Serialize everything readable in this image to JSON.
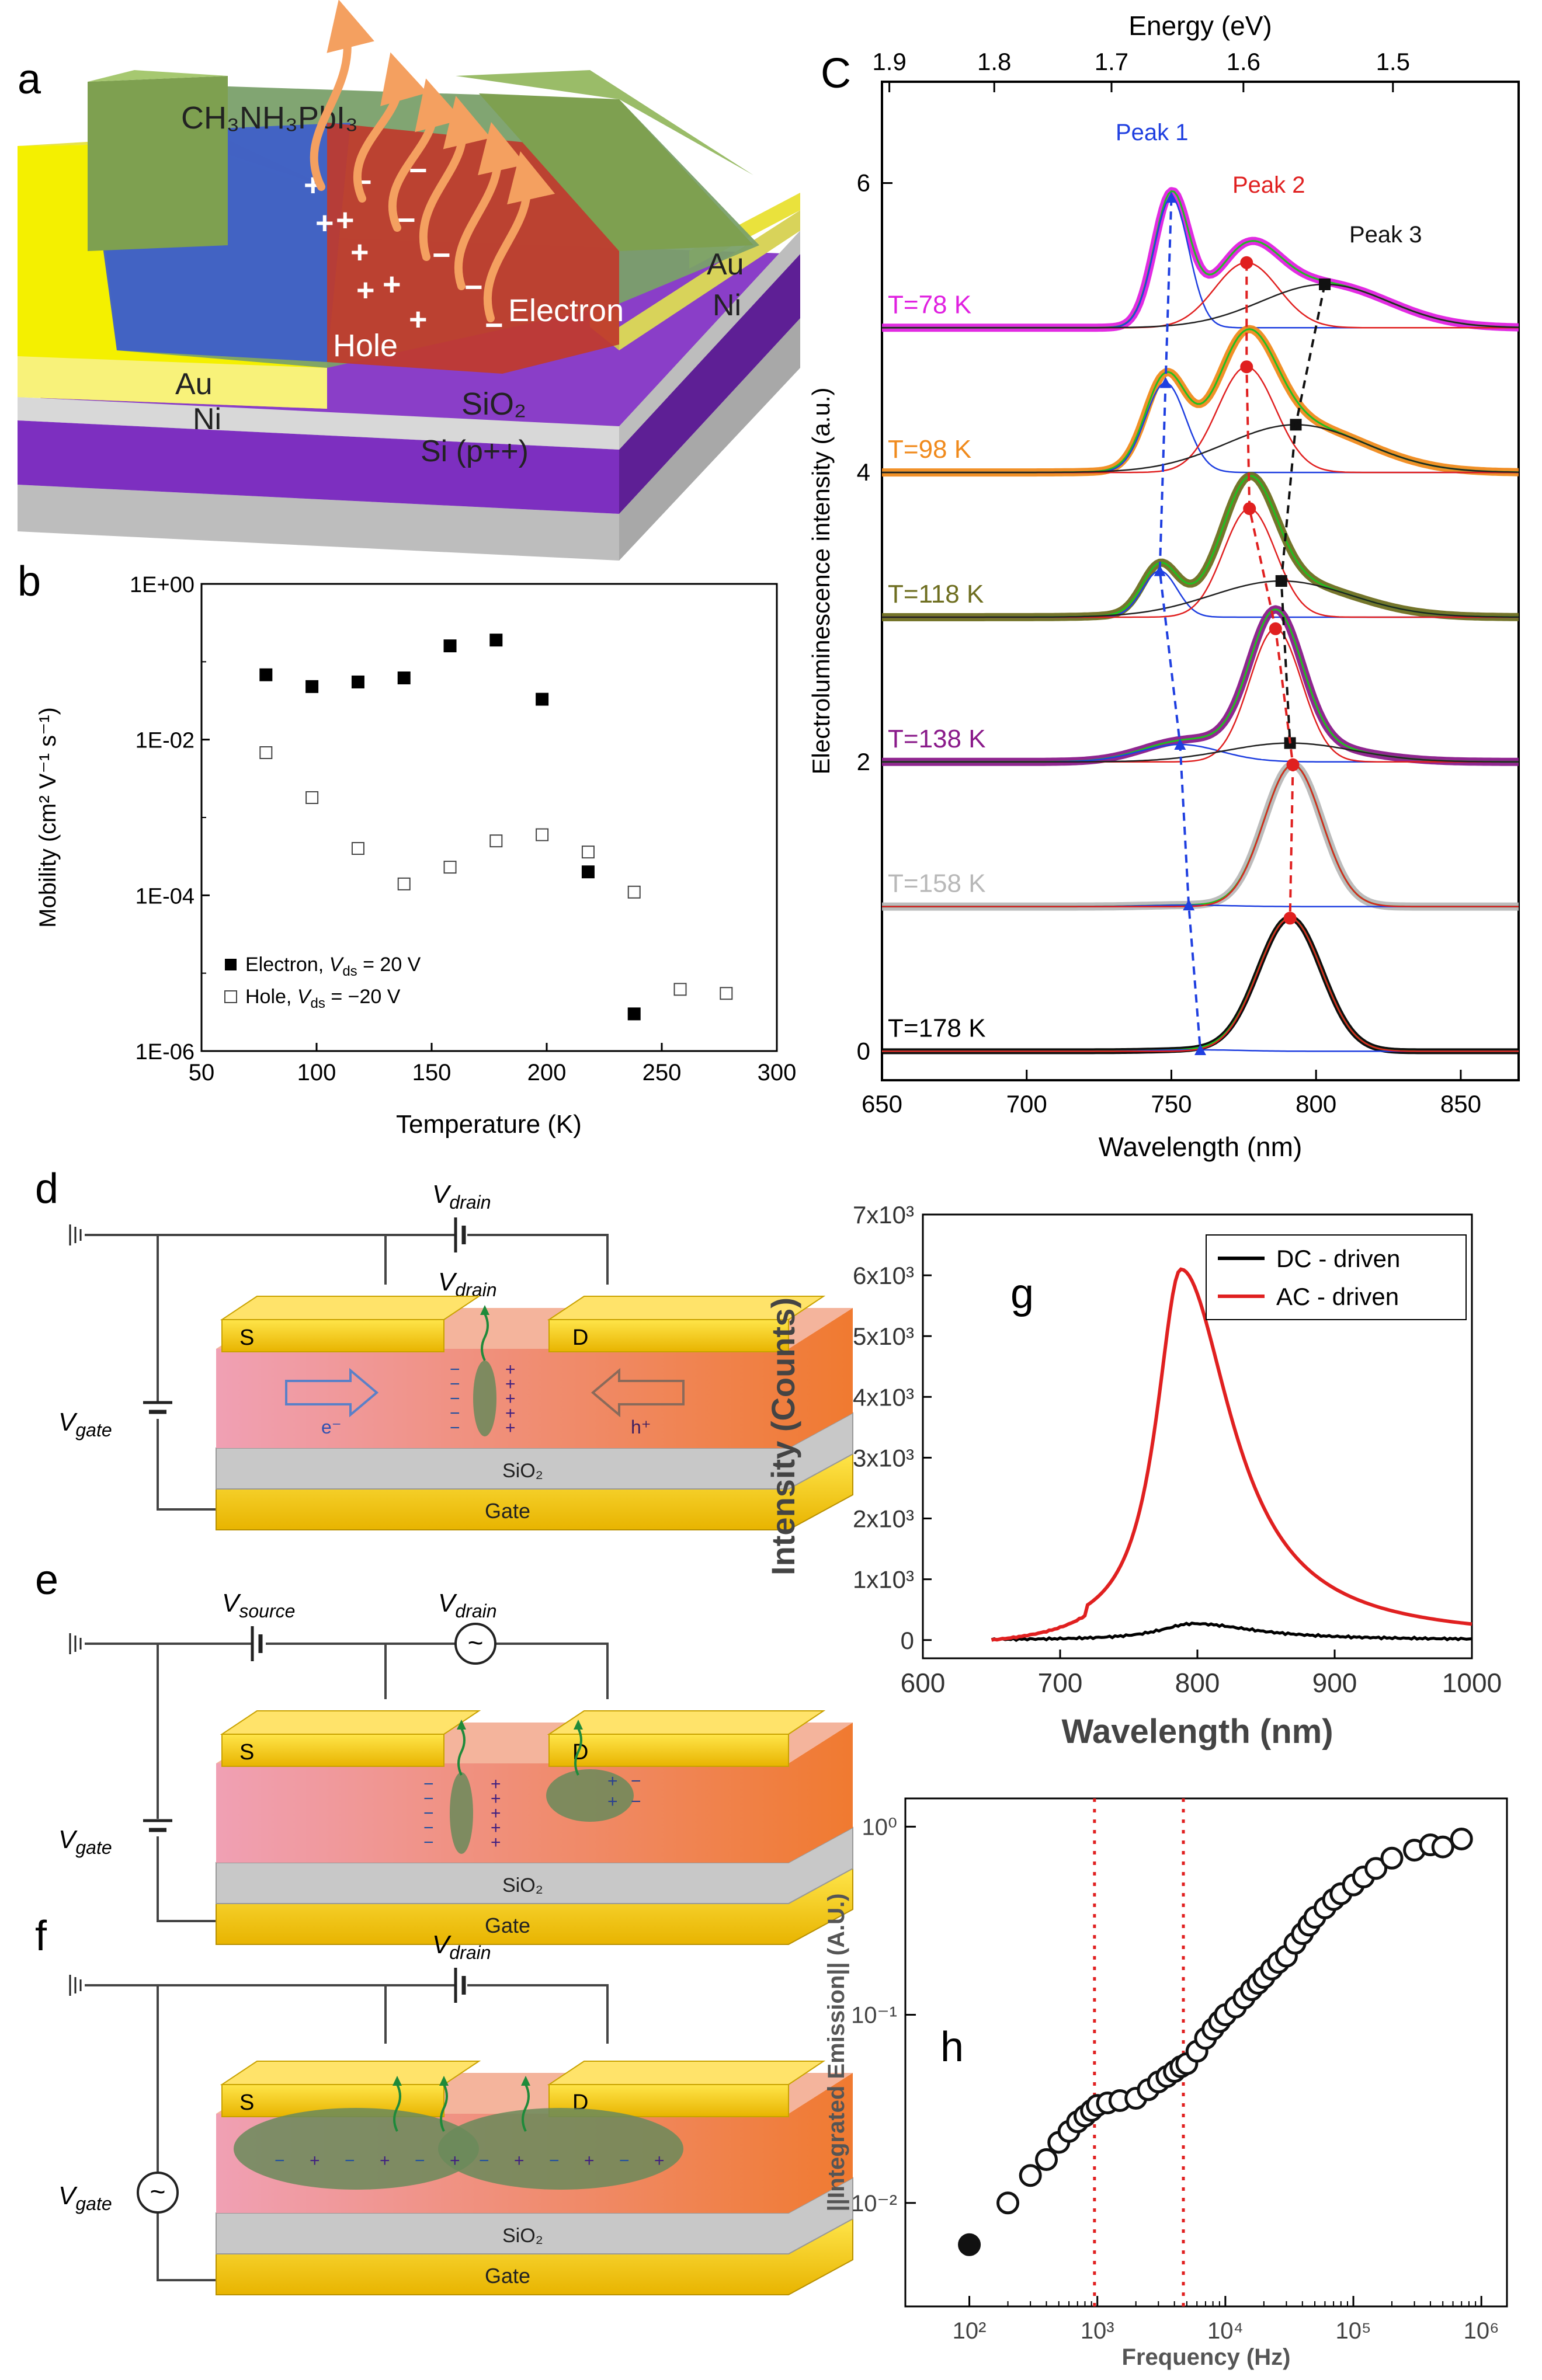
{
  "panel_letters": {
    "a": "a",
    "b": "b",
    "c": "C",
    "d": "d",
    "e": "e",
    "f": "f",
    "g": "g",
    "h": "h"
  },
  "panel_a": {
    "material_label": "CH₃NH₃PbI₃",
    "au_label": "Au",
    "ni_label": "Ni",
    "sio2_label": "SiO₂",
    "si_label": "Si (p++)",
    "hole_label": "Hole",
    "electron_label": "Electron"
  },
  "circuits": {
    "v_drain": "V",
    "drain_sub": "drain",
    "v_source": "V",
    "source_sub": "source",
    "v_gate": "V",
    "gate_sub": "gate",
    "s_label": "S",
    "d_label": "D",
    "sio2": "SiO₂",
    "gate": "Gate",
    "e_label": "e⁻",
    "h_label": "h⁺",
    "ac_symbol": "~"
  },
  "colors": {
    "mag": "#e020e0",
    "org": "#f08a1c",
    "olive": "#6e6e20",
    "purple": "#8a1a8a",
    "grey": "#b8b8b8",
    "blue": "#1f3fe0",
    "red": "#e02020",
    "green": "#20c020"
  },
  "chart_data": [
    {
      "id": "b",
      "type": "scatter",
      "title": "",
      "xlabel": "Temperature (K)",
      "ylabel": "Mobility (cm² V⁻¹ s⁻¹)",
      "xlim": [
        50,
        300
      ],
      "ylim_log10": [
        -6,
        0
      ],
      "xticks": [
        "50",
        "100",
        "150",
        "200",
        "250",
        "300"
      ],
      "yticks": [
        "1E+00",
        "1E-02",
        "1E-04",
        "1E-06"
      ],
      "series": [
        {
          "name": "Electron, V_ds = 20 V",
          "legend": "Electron, ",
          "legend_v": "V",
          "legend_sub": "ds",
          "legend_tail": " = 20 V",
          "marker": "filled-square",
          "x": [
            78,
            98,
            118,
            138,
            158,
            178,
            198,
            218,
            238
          ],
          "y": [
            0.068,
            0.048,
            0.055,
            0.062,
            0.16,
            0.19,
            0.033,
            0.0002,
            3e-06
          ]
        },
        {
          "name": "Hole, V_ds = -20 V",
          "legend": "Hole, ",
          "legend_v": "V",
          "legend_sub": "ds",
          "legend_tail": " = −20 V",
          "marker": "open-square",
          "x": [
            78,
            98,
            118,
            138,
            158,
            178,
            198,
            218,
            238,
            258,
            278
          ],
          "y": [
            0.0068,
            0.0018,
            0.0004,
            0.00014,
            0.00023,
            0.0005,
            0.0006,
            0.00036,
            0.00011,
            6.2e-06,
            5.5e-06
          ]
        }
      ],
      "legend_position": "bottom-left"
    },
    {
      "id": "c",
      "type": "line",
      "title": "",
      "xlabel": "Wavelength (nm)",
      "ylabel": "Electroluminescence intensity (a.u.)",
      "top_axis_label": "Energy (eV)",
      "xlim": [
        650,
        870
      ],
      "ylim": [
        -0.2,
        6.7
      ],
      "xticks": [
        "650",
        "700",
        "750",
        "800",
        "850"
      ],
      "yticks": [
        "0",
        "2",
        "4",
        "6"
      ],
      "top_ticks": [
        "1.9",
        "1.8",
        "1.7",
        "1.6",
        "1.5"
      ],
      "top_tick_values": [
        1.9,
        1.8,
        1.7,
        1.6,
        1.5
      ],
      "peak_labels": [
        "Peak 1",
        "Peak 2",
        "Peak 3"
      ],
      "series": [
        {
          "name": "T=78 K",
          "offset": 5,
          "color": "#e020e0",
          "peaks": [
            {
              "center": 750,
              "amp": 0.9,
              "width": 6
            },
            {
              "center": 776,
              "amp": 0.45,
              "width": 11
            },
            {
              "center": 803,
              "amp": 0.3,
              "width": 22
            }
          ]
        },
        {
          "name": "T=98 K",
          "offset": 4,
          "color": "#f08a1c",
          "peaks": [
            {
              "center": 748,
              "amp": 0.62,
              "width": 7
            },
            {
              "center": 776,
              "amp": 0.73,
              "width": 10
            },
            {
              "center": 793,
              "amp": 0.33,
              "width": 24
            }
          ]
        },
        {
          "name": "T=118 K",
          "offset": 3,
          "color": "#6e6e20",
          "peaks": [
            {
              "center": 746,
              "amp": 0.32,
              "width": 6
            },
            {
              "center": 777,
              "amp": 0.75,
              "width": 9
            },
            {
              "center": 788,
              "amp": 0.25,
              "width": 24
            }
          ]
        },
        {
          "name": "T=138 K",
          "offset": 2,
          "color": "#8a1a8a",
          "peaks": [
            {
              "center": 753,
              "amp": 0.12,
              "width": 14
            },
            {
              "center": 786,
              "amp": 0.92,
              "width": 9
            },
            {
              "center": 791,
              "amp": 0.13,
              "width": 22
            }
          ]
        },
        {
          "name": "T=158 K",
          "offset": 1,
          "color": "#b8b8b8",
          "peaks": [
            {
              "center": 756,
              "amp": 0.01,
              "width": 14
            },
            {
              "center": 792,
              "amp": 0.98,
              "width": 10
            }
          ]
        },
        {
          "name": "T=178 K",
          "offset": 0,
          "color": "#000000",
          "peaks": [
            {
              "center": 760,
              "amp": 0.01,
              "width": 14
            },
            {
              "center": 791,
              "amp": 0.92,
              "width": 11
            }
          ]
        }
      ]
    },
    {
      "id": "g",
      "type": "line",
      "title": "",
      "xlabel": "Wavelength (nm)",
      "ylabel": "Intensity (Counts)",
      "xlim": [
        600,
        1000
      ],
      "ylim": [
        -300,
        7000
      ],
      "xticks": [
        "600",
        "700",
        "800",
        "900",
        "1000"
      ],
      "yticks": [
        "0",
        "1x10³",
        "2x10³",
        "3x10³",
        "4x10³",
        "5x10³",
        "6x10³",
        "7x10³"
      ],
      "legend_position": "top-right",
      "series": [
        {
          "name": "DC - driven",
          "color": "#000000",
          "peak_x": 797,
          "peak_y": 270
        },
        {
          "name": "AC - driven",
          "color": "#e02020",
          "peak_x": 788,
          "peak_y": 6100
        }
      ]
    },
    {
      "id": "h",
      "type": "scatter",
      "title": "",
      "xlabel": "Frequency (Hz)",
      "ylabel": "||Integrated Emission|| (A.U.)",
      "xlim_log10": [
        1.5,
        6.2
      ],
      "ylim_log10": [
        -2.55,
        0.15
      ],
      "xticks": [
        "10²",
        "10³",
        "10⁴",
        "10⁵",
        "10⁶"
      ],
      "yticks": [
        "10⁻²",
        "10⁻¹",
        "10⁰"
      ],
      "vlines_hz": [
        950,
        4700
      ],
      "series": [
        {
          "name": "Integrated emission",
          "marker": "open-circle",
          "x": [
            100,
            200,
            300,
            400,
            500,
            600,
            700,
            800,
            900,
            1000,
            1200,
            1500,
            2000,
            2500,
            3000,
            3500,
            4000,
            4500,
            5000,
            6000,
            7000,
            8000,
            9000,
            10000,
            12000,
            14000,
            16000,
            18000,
            20000,
            23000,
            26000,
            30000,
            35000,
            40000,
            45000,
            50000,
            60000,
            70000,
            80000,
            100000,
            120000,
            150000,
            200000,
            300000,
            400000,
            500000,
            700000
          ],
          "y": [
            0.006,
            0.01,
            0.014,
            0.017,
            0.021,
            0.024,
            0.027,
            0.029,
            0.031,
            0.033,
            0.034,
            0.035,
            0.036,
            0.04,
            0.044,
            0.047,
            0.05,
            0.053,
            0.055,
            0.064,
            0.075,
            0.084,
            0.092,
            0.1,
            0.11,
            0.123,
            0.136,
            0.147,
            0.158,
            0.175,
            0.19,
            0.205,
            0.24,
            0.27,
            0.3,
            0.33,
            0.37,
            0.41,
            0.44,
            0.49,
            0.54,
            0.6,
            0.68,
            0.75,
            0.8,
            0.78,
            0.86
          ]
        }
      ]
    }
  ]
}
